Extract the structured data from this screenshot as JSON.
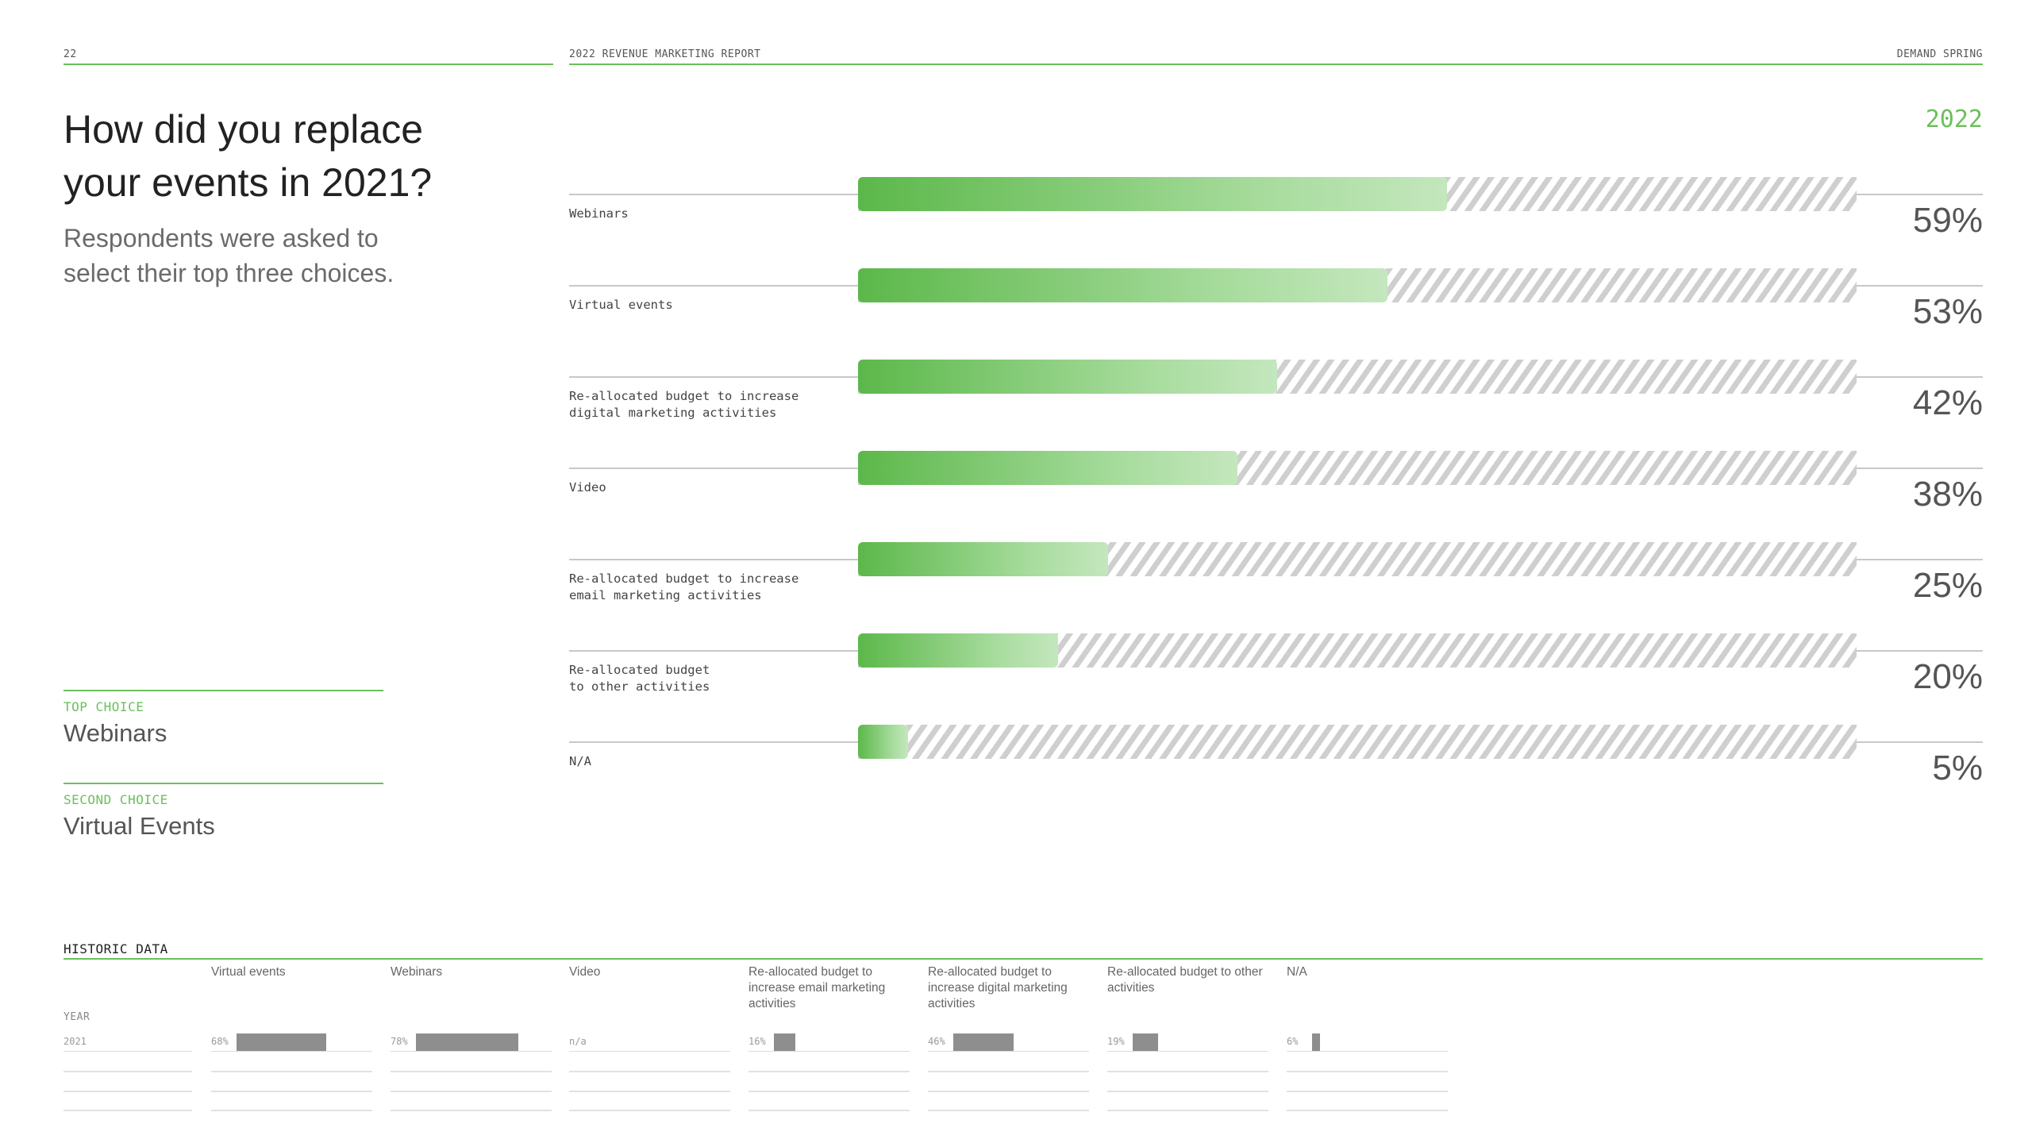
{
  "header": {
    "page_number": "22",
    "report_title": "2022 REVENUE MARKETING REPORT",
    "brand": "DEMAND SPRING"
  },
  "title_line1": "How did you replace",
  "title_line2": "your events in 2021?",
  "subtitle_line1": "Respondents were asked to",
  "subtitle_line2": "select their top three choices.",
  "year": "2022",
  "top_choice": {
    "label": "TOP CHOICE",
    "value": "Webinars"
  },
  "second_choice": {
    "label": "SECOND CHOICE",
    "value": "Virtual Events"
  },
  "chart_data": {
    "type": "bar",
    "orientation": "horizontal",
    "xlim": [
      0,
      100
    ],
    "unit": "%",
    "categories": [
      "Webinars",
      "Virtual events",
      "Re-allocated budget to increase\ndigital marketing activities",
      "Video",
      "Re-allocated budget to increase\nemail marketing activities",
      "Re-allocated budget\nto other activities",
      "N/A"
    ],
    "values": [
      59,
      53,
      42,
      38,
      25,
      20,
      5
    ],
    "value_labels": [
      "59%",
      "53%",
      "42%",
      "38%",
      "25%",
      "20%",
      "5%"
    ],
    "colors": {
      "bar_start": "#5cb84a",
      "bar_end": "#c4e7bd",
      "remainder": "#cfcfcf",
      "accent": "#6cbf5b"
    }
  },
  "historic": {
    "title": "HISTORIC DATA",
    "year_header": "YEAR",
    "year": "2021",
    "columns": [
      {
        "name": "Virtual events",
        "value": 68,
        "label": "68%"
      },
      {
        "name": "Webinars",
        "value": 78,
        "label": "78%"
      },
      {
        "name": "Video",
        "value": null,
        "label": "n/a"
      },
      {
        "name": "Re-allocated budget to increase email marketing activities",
        "value": 16,
        "label": "16%"
      },
      {
        "name": "Re-allocated budget to increase digital marketing activities",
        "value": 46,
        "label": "46%"
      },
      {
        "name": "Re-allocated budget to other activities",
        "value": 19,
        "label": "19%"
      },
      {
        "name": "N/A",
        "value": 6,
        "label": "6%"
      }
    ]
  }
}
